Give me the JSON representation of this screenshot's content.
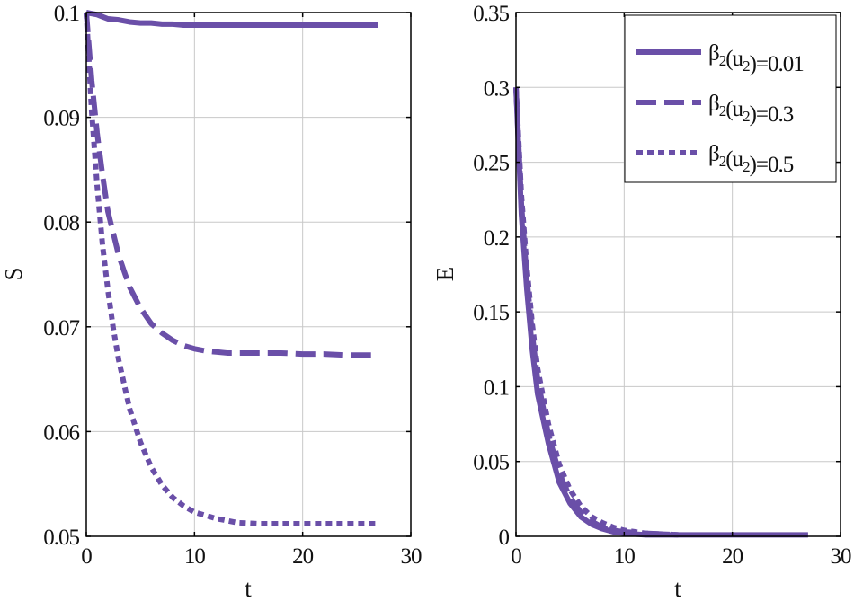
{
  "chart_data": [
    {
      "type": "line",
      "xlabel": "t",
      "ylabel": "S",
      "xlim": [
        0,
        30
      ],
      "ylim": [
        0.05,
        0.1
      ],
      "xticks": [
        0,
        10,
        20,
        30
      ],
      "xtick_labels": [
        "0",
        "10",
        "20",
        "30"
      ],
      "yticks": [
        0.05,
        0.06,
        0.07,
        0.08,
        0.09,
        0.1
      ],
      "ytick_labels": [
        "0.05",
        "0.06",
        "0.07",
        "0.08",
        "0.09",
        "0.1"
      ],
      "grid": true,
      "series": [
        {
          "style": "solid",
          "x": [
            0,
            0.5,
            1,
            1.5,
            2,
            3,
            4,
            5,
            6,
            7,
            8,
            9,
            10,
            12,
            14,
            16,
            18,
            20,
            22,
            24,
            27
          ],
          "y": [
            0.1,
            0.0999,
            0.0998,
            0.0996,
            0.0994,
            0.0993,
            0.0991,
            0.099,
            0.099,
            0.0989,
            0.0989,
            0.0988,
            0.0988,
            0.0988,
            0.0988,
            0.0988,
            0.0988,
            0.0988,
            0.0988,
            0.0988,
            0.0988
          ]
        },
        {
          "style": "dashed",
          "x": [
            0,
            0.5,
            1,
            1.5,
            2,
            3,
            4,
            5,
            6,
            7,
            8,
            9,
            10,
            11,
            12,
            13,
            14,
            16,
            18,
            20,
            22,
            24,
            27
          ],
          "y": [
            0.1,
            0.0935,
            0.0885,
            0.0845,
            0.081,
            0.0768,
            0.0738,
            0.0718,
            0.0703,
            0.0694,
            0.0687,
            0.0682,
            0.0679,
            0.0677,
            0.0676,
            0.0675,
            0.0675,
            0.0675,
            0.0675,
            0.0674,
            0.0674,
            0.0673,
            0.0673
          ]
        },
        {
          "style": "dotted",
          "x": [
            0,
            0.5,
            1,
            1.5,
            2,
            2.5,
            3,
            4,
            5,
            6,
            7,
            8,
            9,
            10,
            11,
            12,
            13,
            14,
            16,
            18,
            20,
            22,
            24,
            27
          ],
          "y": [
            0.1,
            0.0905,
            0.0835,
            0.0778,
            0.0735,
            0.0698,
            0.0668,
            0.0622,
            0.059,
            0.0566,
            0.0549,
            0.0537,
            0.0529,
            0.0523,
            0.052,
            0.0517,
            0.0515,
            0.0513,
            0.0512,
            0.0512,
            0.0512,
            0.0512,
            0.0512,
            0.0512
          ]
        }
      ]
    },
    {
      "type": "line",
      "xlabel": "E",
      "ylabel": "",
      "xlim": [
        0,
        30
      ],
      "ylim": [
        0,
        0.35
      ],
      "xticks": [
        0,
        10,
        20,
        30
      ],
      "xtick_labels": [
        "0",
        "10",
        "20",
        "30"
      ],
      "yticks": [
        0,
        0.05,
        0.1,
        0.15,
        0.2,
        0.25,
        0.3,
        0.35
      ],
      "ytick_labels": [
        "0",
        "0.05",
        "0.1",
        "0.15",
        "0.2",
        "0.25",
        "0.3",
        "0.35"
      ],
      "grid": true,
      "legend_position": "top-right",
      "series": [
        {
          "style": "solid",
          "x": [
            0,
            0.5,
            1,
            1.5,
            2,
            3,
            4,
            5,
            6,
            7,
            8,
            9,
            10,
            12,
            15,
            20,
            27
          ],
          "y": [
            0.3,
            0.215,
            0.165,
            0.125,
            0.095,
            0.062,
            0.036,
            0.022,
            0.013,
            0.008,
            0.005,
            0.003,
            0.002,
            0.001,
            0.001,
            0.001,
            0.001
          ]
        },
        {
          "style": "dashed",
          "x": [
            0,
            0.5,
            1,
            1.5,
            2,
            3,
            4,
            5,
            6,
            7,
            8,
            9,
            10,
            12,
            15
          ],
          "y": [
            0.3,
            0.222,
            0.173,
            0.135,
            0.105,
            0.068,
            0.042,
            0.026,
            0.016,
            0.01,
            0.006,
            0.004,
            0.003,
            0.002,
            0.001
          ]
        },
        {
          "style": "dotted",
          "x": [
            0,
            0.5,
            1,
            1.5,
            2,
            3,
            4,
            5,
            6,
            7,
            8,
            9,
            10,
            12,
            15
          ],
          "y": [
            0.3,
            0.228,
            0.18,
            0.142,
            0.112,
            0.075,
            0.048,
            0.031,
            0.02,
            0.013,
            0.009,
            0.006,
            0.004,
            0.002,
            0.001
          ]
        }
      ]
    }
  ],
  "legend": [
    {
      "style": "solid",
      "prefix": "β",
      "sub1": "2",
      "mid": "(u",
      "sub2": "2",
      "suffix": ")=0.01"
    },
    {
      "style": "dashed",
      "prefix": "β",
      "sub1": "2",
      "mid": "(u",
      "sub2": "2",
      "suffix": ")=0.3"
    },
    {
      "style": "dotted",
      "prefix": "β",
      "sub1": "2",
      "mid": "(u",
      "sub2": "2",
      "suffix": ")=0.5"
    }
  ],
  "bottom_labels": [
    "t",
    "t"
  ],
  "colors": {
    "line": "#6a4fa8",
    "grid": "#c8c8c8",
    "axis": "#000000"
  }
}
